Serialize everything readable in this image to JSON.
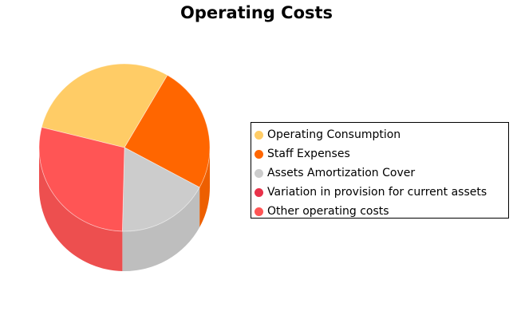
{
  "chart_data": {
    "type": "pie",
    "title": "Operating Costs",
    "legend_position": "right",
    "slices": [
      {
        "label": "Operating Consumption",
        "value": 29.5,
        "color": "#FFCC66"
      },
      {
        "label": "Staff Expenses",
        "value": 24.5,
        "color": "#FF6600"
      },
      {
        "label": "Assets Amortization Cover",
        "value": 17.5,
        "color": "#CCCCCC"
      },
      {
        "label": "Variation in provision for current assets",
        "value": 0,
        "color": "#E8324A"
      },
      {
        "label": "Other operating costs",
        "value": 28.5,
        "color": "#FF5555"
      }
    ]
  }
}
